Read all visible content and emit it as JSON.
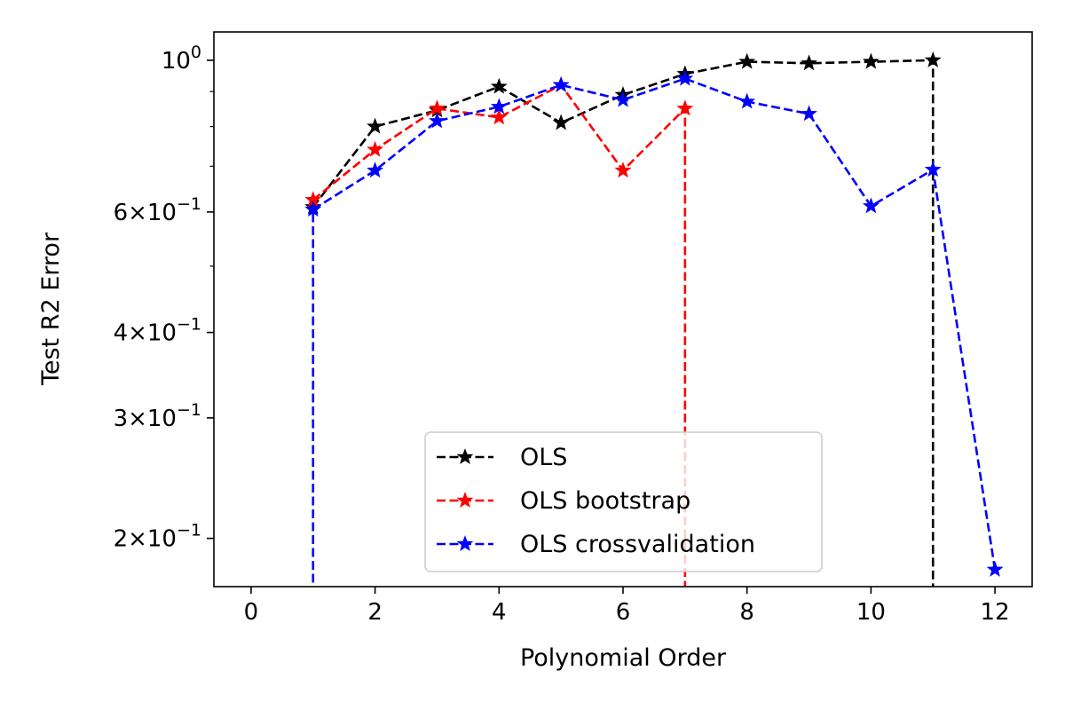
{
  "chart_data": {
    "type": "line",
    "title": "",
    "xlabel": "Polynomial Order",
    "ylabel": "Test R2 Error",
    "xlim": [
      -0.6,
      12.6
    ],
    "ylim": [
      0.17,
      1.1
    ],
    "yscale": "log",
    "grid": false,
    "legend_position": "lower center",
    "x_ticks": [
      0,
      2,
      4,
      6,
      8,
      10,
      12
    ],
    "x_tick_labels": [
      "0",
      "2",
      "4",
      "6",
      "8",
      "10",
      "12"
    ],
    "y_ticks": [
      {
        "value": 1.0,
        "mantissa": "",
        "exponent": "0"
      },
      {
        "value": 0.6,
        "mantissa": "6",
        "exponent": "−1"
      },
      {
        "value": 0.4,
        "mantissa": "4",
        "exponent": "−1"
      },
      {
        "value": 0.3,
        "mantissa": "3",
        "exponent": "−1"
      },
      {
        "value": 0.2,
        "mantissa": "2",
        "exponent": "−1"
      }
    ],
    "y_tick_base": "10",
    "y_minor_ticks": [
      0.5,
      0.7,
      0.8,
      0.9
    ],
    "series": [
      {
        "name": "OLS",
        "color": "#000000",
        "x": [
          1,
          2,
          3,
          4,
          5,
          6,
          7,
          8,
          9,
          10,
          11
        ],
        "values": [
          0.61,
          0.8,
          0.845,
          0.915,
          0.81,
          0.89,
          0.955,
          0.995,
          0.99,
          0.995,
          1.0
        ],
        "drop_to_bottom_at": 11
      },
      {
        "name": "OLS bootstrap",
        "color": "#ff0000",
        "x": [
          1,
          2,
          3,
          4,
          5,
          6,
          7
        ],
        "values": [
          0.625,
          0.74,
          0.85,
          0.825,
          0.92,
          0.69,
          0.85
        ],
        "drop_to_bottom_at": 7
      },
      {
        "name": "OLS crossvalidation",
        "color": "#0000ff",
        "x": [
          1,
          2,
          3,
          4,
          5,
          6,
          7,
          8,
          9,
          10,
          11,
          12
        ],
        "values": [
          0.605,
          0.69,
          0.815,
          0.855,
          0.92,
          0.875,
          0.94,
          0.87,
          0.835,
          0.612,
          0.692,
          0.18
        ],
        "rise_from_bottom_at": 1
      }
    ]
  }
}
